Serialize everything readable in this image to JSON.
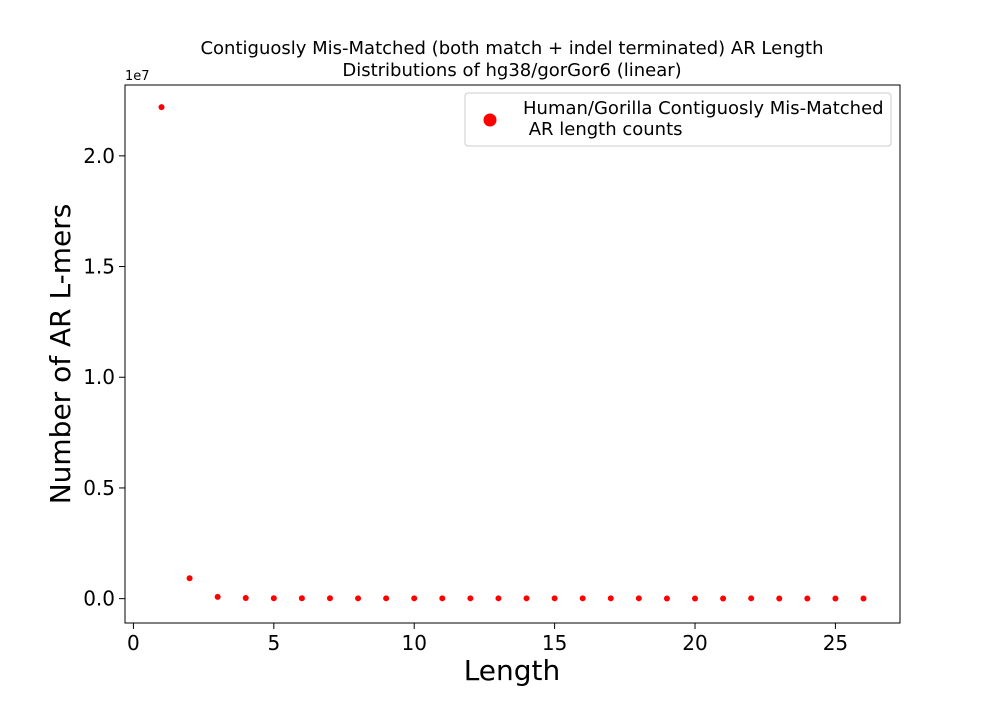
{
  "chart_data": {
    "type": "scatter",
    "title_line1": "Contiguosly Mis-Matched (both match + indel terminated) AR Length",
    "title_line2": "Distributions of hg38/gorGor6 (linear)",
    "xlabel": "Length",
    "ylabel": "Number of AR L-mers",
    "y_exponent_label": "1e7",
    "xlim": [
      -0.3,
      27.3
    ],
    "ylim": [
      -1100000,
      23200000
    ],
    "y_scale_factor": 10000000,
    "xticks": [
      0,
      5,
      10,
      15,
      20,
      25
    ],
    "xtick_labels": [
      "0",
      "5",
      "10",
      "15",
      "20",
      "25"
    ],
    "yticks": [
      0,
      5000000,
      10000000,
      15000000,
      20000000
    ],
    "ytick_labels": [
      "0.0",
      "0.5",
      "1.0",
      "1.5",
      "2.0"
    ],
    "legend": {
      "position": "upper right",
      "line1": "Human/Gorilla Contiguosly Mis-Matched",
      "line2": " AR length counts"
    },
    "color": "#ff0000",
    "grid": false,
    "series": [
      {
        "name": "Human/Gorilla Contiguosly Mis-Matched\n AR length counts",
        "x": [
          1,
          2,
          3,
          4,
          5,
          6,
          7,
          8,
          9,
          10,
          11,
          12,
          13,
          14,
          15,
          16,
          17,
          18,
          19,
          20,
          21,
          22,
          23,
          24,
          25,
          26
        ],
        "y": [
          22200000,
          920000,
          80000,
          30000,
          20000,
          20000,
          20000,
          15000,
          15000,
          15000,
          15000,
          15000,
          15000,
          15000,
          15000,
          15000,
          15000,
          15000,
          5000,
          5000,
          5000,
          15000,
          5000,
          5000,
          5000,
          5000
        ]
      }
    ]
  }
}
